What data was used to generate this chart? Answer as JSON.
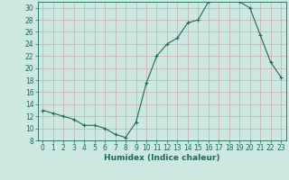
{
  "x": [
    0,
    1,
    2,
    3,
    4,
    5,
    6,
    7,
    8,
    9,
    10,
    11,
    12,
    13,
    14,
    15,
    16,
    17,
    18,
    19,
    20,
    21,
    22,
    23
  ],
  "y": [
    13,
    12.5,
    12,
    11.5,
    10.5,
    10.5,
    10,
    9,
    8.5,
    11,
    17.5,
    22,
    24,
    25,
    27.5,
    28,
    31,
    31.5,
    31.5,
    31,
    30,
    25.5,
    21,
    18.5
  ],
  "line_color": "#1a6b5a",
  "marker": "+",
  "marker_size": 3,
  "bg_color": "#cce8e0",
  "grid_color": "#b0ccc8",
  "xlabel": "Humidex (Indice chaleur)",
  "xlim": [
    -0.5,
    23.5
  ],
  "ylim": [
    8,
    31
  ],
  "yticks": [
    8,
    10,
    12,
    14,
    16,
    18,
    20,
    22,
    24,
    26,
    28,
    30
  ],
  "xticks": [
    0,
    1,
    2,
    3,
    4,
    5,
    6,
    7,
    8,
    9,
    10,
    11,
    12,
    13,
    14,
    15,
    16,
    17,
    18,
    19,
    20,
    21,
    22,
    23
  ],
  "label_color": "#1a6b5a",
  "tick_color": "#1a6b5a",
  "spine_color": "#1a6b5a",
  "tick_fontsize": 5.5,
  "xlabel_fontsize": 6.5,
  "linewidth": 0.8,
  "markeredgewidth": 0.8
}
